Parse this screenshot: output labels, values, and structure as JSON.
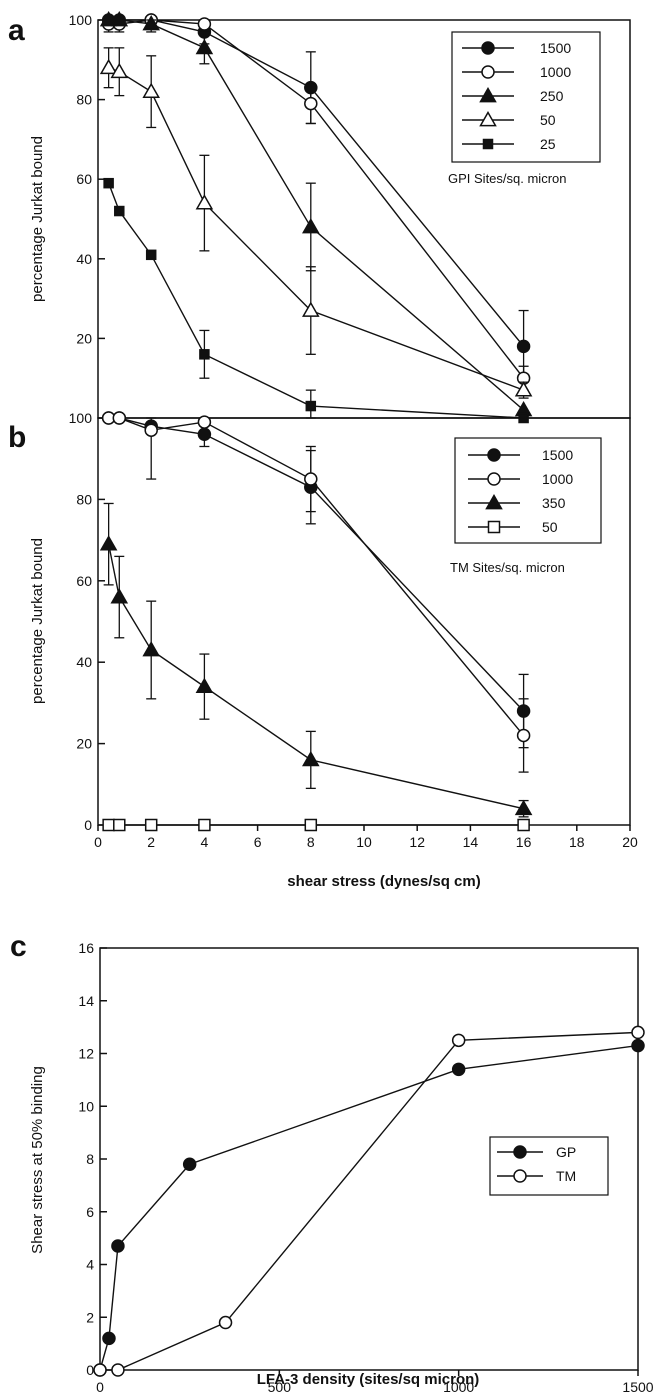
{
  "chart_data": [
    {
      "panel": "a",
      "type": "line",
      "ylabel": "percentage Jurkat bound",
      "ylim": [
        0,
        100
      ],
      "yticks": [
        20,
        40,
        60,
        80,
        100
      ],
      "xlim": [
        0,
        20
      ],
      "legend_title": "GPI Sites/sq. micron",
      "legend_position": "top-right",
      "series": [
        {
          "name": "1500",
          "marker": "filled-circle",
          "points": [
            [
              0.4,
              100
            ],
            [
              0.8,
              100
            ],
            [
              2,
              100
            ],
            [
              4,
              97
            ],
            [
              8,
              83
            ],
            [
              16,
              18
            ]
          ],
          "errors": [
            0,
            0,
            1.5,
            3,
            9,
            9
          ]
        },
        {
          "name": "1000",
          "marker": "open-circle",
          "points": [
            [
              0.4,
              99
            ],
            [
              0.8,
              99
            ],
            [
              2,
              100
            ],
            [
              4,
              99
            ],
            [
              8,
              79
            ],
            [
              16,
              10
            ]
          ],
          "errors": [
            2,
            2,
            1,
            1,
            5,
            3
          ]
        },
        {
          "name": "250",
          "marker": "filled-triangle",
          "points": [
            [
              0.4,
              100
            ],
            [
              0.8,
              100
            ],
            [
              2,
              99
            ],
            [
              4,
              93
            ],
            [
              8,
              48
            ],
            [
              16,
              2
            ]
          ],
          "errors": [
            0,
            0,
            2,
            4,
            11,
            0
          ]
        },
        {
          "name": "50",
          "marker": "open-triangle",
          "points": [
            [
              0.4,
              88
            ],
            [
              0.8,
              87
            ],
            [
              2,
              82
            ],
            [
              4,
              54
            ],
            [
              8,
              27
            ],
            [
              16,
              7
            ]
          ],
          "errors": [
            5,
            6,
            9,
            12,
            11,
            2
          ]
        },
        {
          "name": "25",
          "marker": "filled-square",
          "points": [
            [
              0.4,
              59
            ],
            [
              0.8,
              52
            ],
            [
              2,
              41
            ],
            [
              4,
              16
            ],
            [
              8,
              3
            ],
            [
              16,
              0
            ]
          ],
          "errors": [
            0,
            0,
            0,
            6,
            4,
            0
          ]
        }
      ]
    },
    {
      "panel": "b",
      "type": "line",
      "ylabel": "percentage Jurkat bound",
      "xlabel": "shear stress (dynes/sq cm)",
      "xlim": [
        0,
        20
      ],
      "ylim": [
        0,
        100
      ],
      "xticks": [
        0,
        2,
        4,
        6,
        8,
        10,
        12,
        14,
        16,
        18,
        20
      ],
      "yticks": [
        0,
        20,
        40,
        60,
        80,
        100
      ],
      "legend_title": "TM Sites/sq. micron",
      "legend_position": "top-right",
      "series": [
        {
          "name": "1500",
          "marker": "filled-circle",
          "points": [
            [
              0.4,
              100
            ],
            [
              0.8,
              100
            ],
            [
              2,
              98
            ],
            [
              4,
              96
            ],
            [
              8,
              83
            ],
            [
              16,
              28
            ]
          ],
          "errors": [
            0,
            0,
            1,
            3,
            9,
            9
          ]
        },
        {
          "name": "1000",
          "marker": "open-circle",
          "points": [
            [
              0.4,
              100
            ],
            [
              0.8,
              100
            ],
            [
              2,
              97
            ],
            [
              4,
              99
            ],
            [
              8,
              85
            ],
            [
              16,
              22
            ]
          ],
          "errors": [
            0,
            0,
            12,
            1,
            8,
            9
          ]
        },
        {
          "name": "350",
          "marker": "filled-triangle",
          "points": [
            [
              0.4,
              69
            ],
            [
              0.8,
              56
            ],
            [
              2,
              43
            ],
            [
              4,
              34
            ],
            [
              8,
              16
            ],
            [
              16,
              4
            ]
          ],
          "errors": [
            10,
            10,
            12,
            8,
            7,
            2
          ]
        },
        {
          "name": "50",
          "marker": "open-square",
          "points": [
            [
              0.4,
              0
            ],
            [
              0.8,
              0
            ],
            [
              2,
              0
            ],
            [
              4,
              0
            ],
            [
              8,
              0
            ],
            [
              16,
              0
            ]
          ],
          "errors": [
            0,
            0,
            0,
            0,
            0,
            0
          ]
        }
      ]
    },
    {
      "panel": "c",
      "type": "line",
      "ylabel": "Shear stress at 50% binding",
      "xlabel": "LFA-3 density (sites/sq micron)",
      "xlim": [
        0,
        1500
      ],
      "ylim": [
        0,
        16
      ],
      "xticks": [
        0,
        500,
        1000,
        1500
      ],
      "yticks": [
        0,
        2,
        4,
        6,
        8,
        10,
        12,
        14,
        16
      ],
      "legend_position": "lower-right",
      "series": [
        {
          "name": "GP",
          "marker": "filled-circle",
          "points": [
            [
              0,
              0
            ],
            [
              25,
              1.2
            ],
            [
              50,
              4.7
            ],
            [
              250,
              7.8
            ],
            [
              1000,
              11.4
            ],
            [
              1500,
              12.3
            ]
          ]
        },
        {
          "name": "TM",
          "marker": "open-circle",
          "points": [
            [
              0,
              0
            ],
            [
              50,
              0
            ],
            [
              350,
              1.8
            ],
            [
              1000,
              12.5
            ],
            [
              1500,
              12.8
            ]
          ]
        }
      ]
    }
  ]
}
